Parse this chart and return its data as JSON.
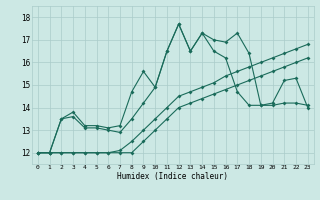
{
  "title": "",
  "xlabel": "Humidex (Indice chaleur)",
  "xlim": [
    -0.5,
    23.5
  ],
  "ylim": [
    11.5,
    18.5
  ],
  "xticks": [
    0,
    1,
    2,
    3,
    4,
    5,
    6,
    7,
    8,
    9,
    10,
    11,
    12,
    13,
    14,
    15,
    16,
    17,
    18,
    19,
    20,
    21,
    22,
    23
  ],
  "yticks": [
    12,
    13,
    14,
    15,
    16,
    17,
    18
  ],
  "bg_color": "#cce8e4",
  "line_color": "#1a6b5a",
  "grid_color": "#aaccca",
  "series": [
    [
      12.0,
      12.0,
      13.5,
      13.8,
      13.2,
      13.2,
      13.1,
      13.2,
      14.7,
      15.6,
      14.9,
      16.5,
      17.7,
      16.5,
      17.3,
      17.0,
      16.9,
      17.3,
      16.4,
      14.1,
      14.1,
      14.2,
      14.2,
      14.1
    ],
    [
      12.0,
      12.0,
      13.5,
      13.6,
      13.1,
      13.1,
      13.0,
      12.9,
      13.5,
      14.2,
      14.9,
      16.5,
      17.7,
      16.5,
      17.3,
      16.5,
      16.2,
      14.7,
      14.1,
      14.1,
      14.2,
      15.2,
      15.3,
      14.0
    ],
    [
      12.0,
      12.0,
      12.0,
      12.0,
      12.0,
      12.0,
      12.0,
      12.1,
      12.5,
      13.0,
      13.5,
      14.0,
      14.5,
      14.7,
      14.9,
      15.1,
      15.4,
      15.6,
      15.8,
      16.0,
      16.2,
      16.4,
      16.6,
      16.8
    ],
    [
      12.0,
      12.0,
      12.0,
      12.0,
      12.0,
      12.0,
      12.0,
      12.0,
      12.0,
      12.5,
      13.0,
      13.5,
      14.0,
      14.2,
      14.4,
      14.6,
      14.8,
      15.0,
      15.2,
      15.4,
      15.6,
      15.8,
      16.0,
      16.2
    ]
  ]
}
